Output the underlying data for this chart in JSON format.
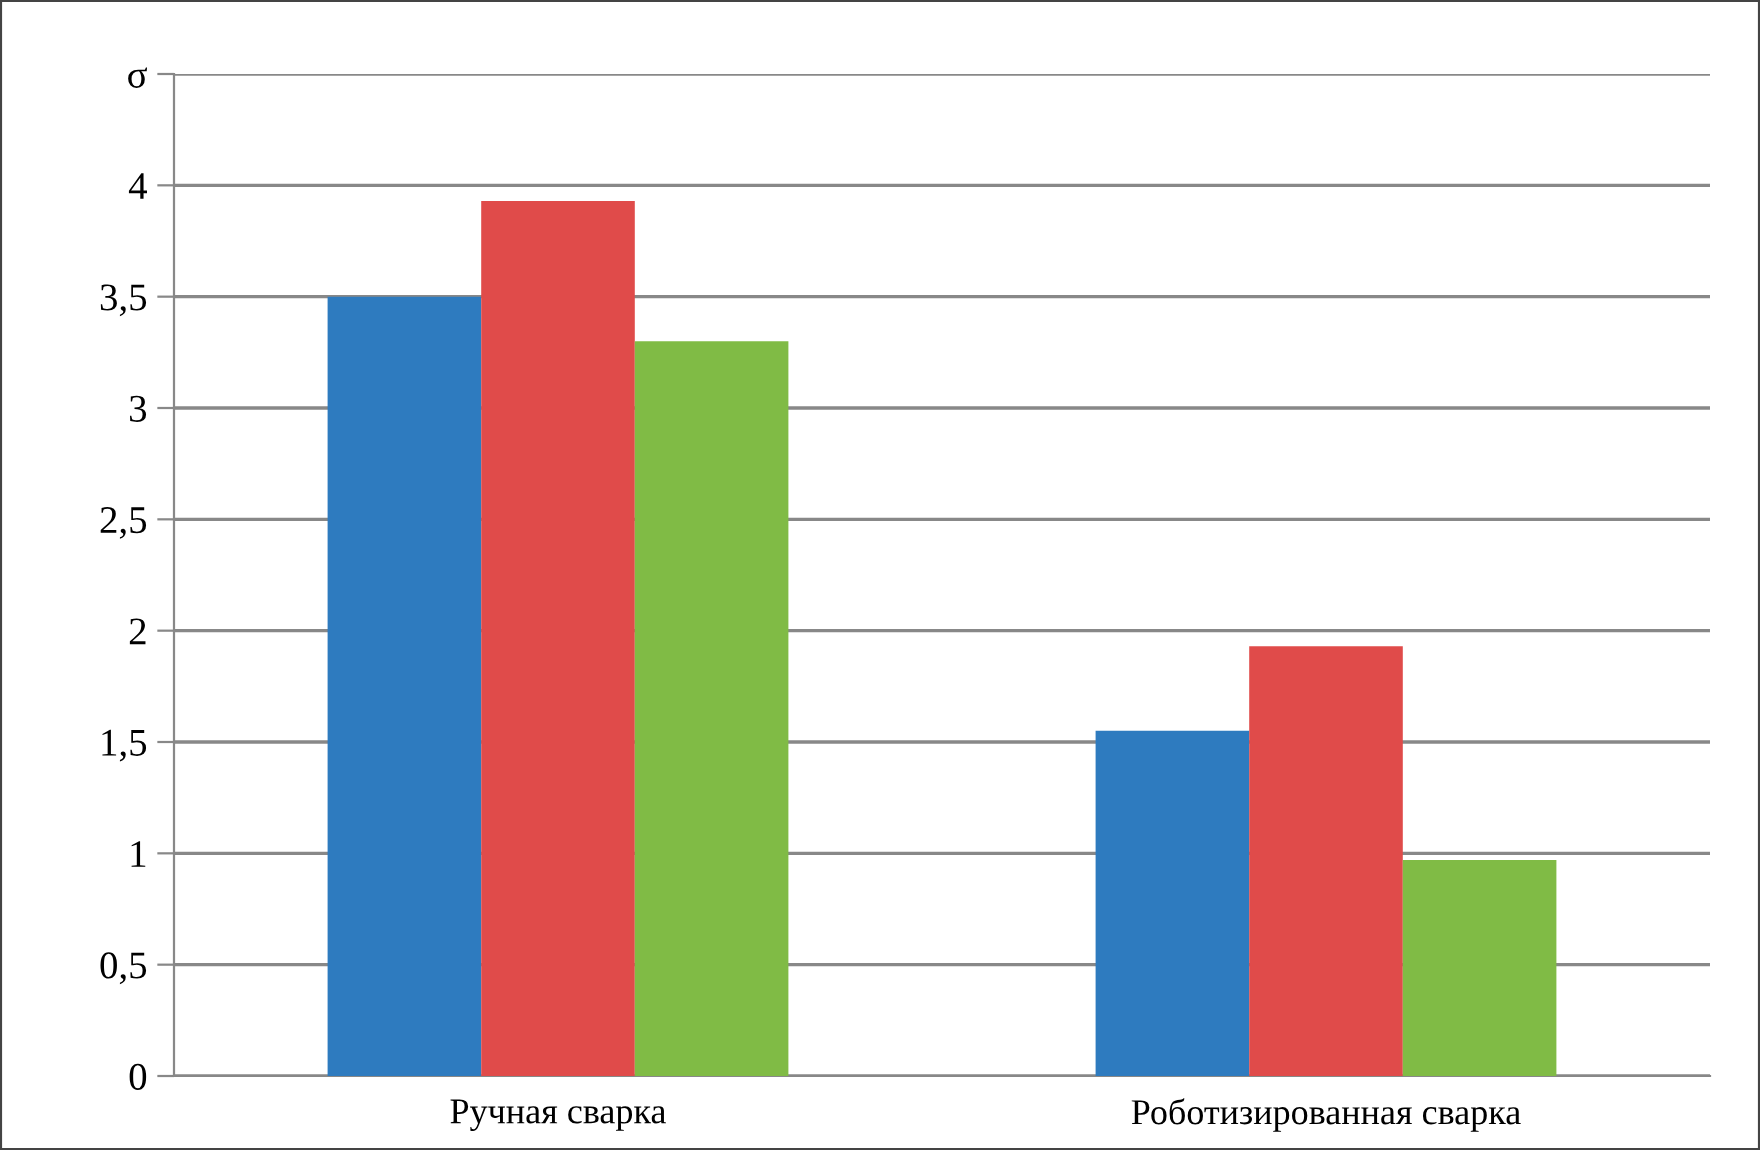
{
  "chart_data": {
    "type": "bar",
    "categories": [
      "Ручная сварка",
      "Роботизированная сварка"
    ],
    "series": [
      {
        "color": "#2e7bbf",
        "values": [
          3.5,
          1.55
        ]
      },
      {
        "color": "#e04b4a",
        "values": [
          3.93,
          1.93
        ]
      },
      {
        "color": "#80bb45",
        "values": [
          3.3,
          0.97
        ]
      }
    ],
    "ylim": [
      0,
      4.5
    ],
    "yticks": [
      0,
      {
        "value": 0.5,
        "label": "0,5"
      },
      1,
      {
        "value": 1.5,
        "label": "1,5"
      },
      2,
      {
        "value": 2.5,
        "label": "2,5"
      },
      3,
      {
        "value": 3.5,
        "label": "3,5"
      },
      4,
      {
        "value": 4.5,
        "label": "σ"
      }
    ],
    "grid": "y",
    "legend": false
  }
}
